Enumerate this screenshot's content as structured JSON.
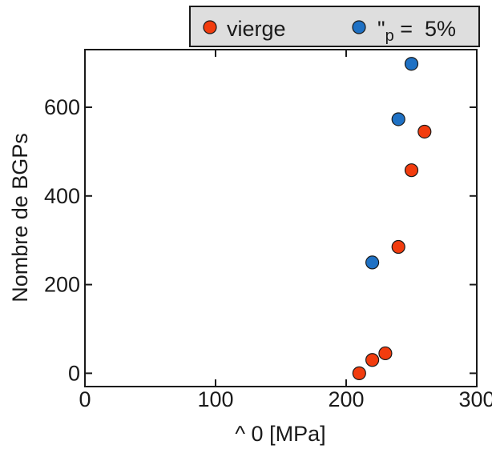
{
  "chart_data": {
    "type": "scatter",
    "xlabel": "^ 0 [MPa]",
    "ylabel": "Nombre de BGPs",
    "xlim": [
      0,
      300
    ],
    "ylim": [
      -30,
      730
    ],
    "xticks": [
      0,
      100,
      200,
      300
    ],
    "yticks": [
      0,
      200,
      400,
      600
    ],
    "xtick_labels": [
      "0",
      "100",
      "200",
      "300"
    ],
    "ytick_labels": [
      "0",
      "200",
      "400",
      "600"
    ],
    "grid": false,
    "legend_position": "top-right, above plot",
    "series": [
      {
        "name": "vierge",
        "color": "#f23c0e",
        "points": [
          {
            "x": 210,
            "y": 0
          },
          {
            "x": 220,
            "y": 30
          },
          {
            "x": 230,
            "y": 45
          },
          {
            "x": 240,
            "y": 285
          },
          {
            "x": 250,
            "y": 458
          },
          {
            "x": 260,
            "y": 545
          }
        ]
      },
      {
        "name_parts": [
          "\"",
          "p",
          " =  5%"
        ],
        "color": "#1f71c4",
        "points": [
          {
            "x": 220,
            "y": 250
          },
          {
            "x": 240,
            "y": 573
          },
          {
            "x": 250,
            "y": 698
          }
        ]
      }
    ]
  }
}
